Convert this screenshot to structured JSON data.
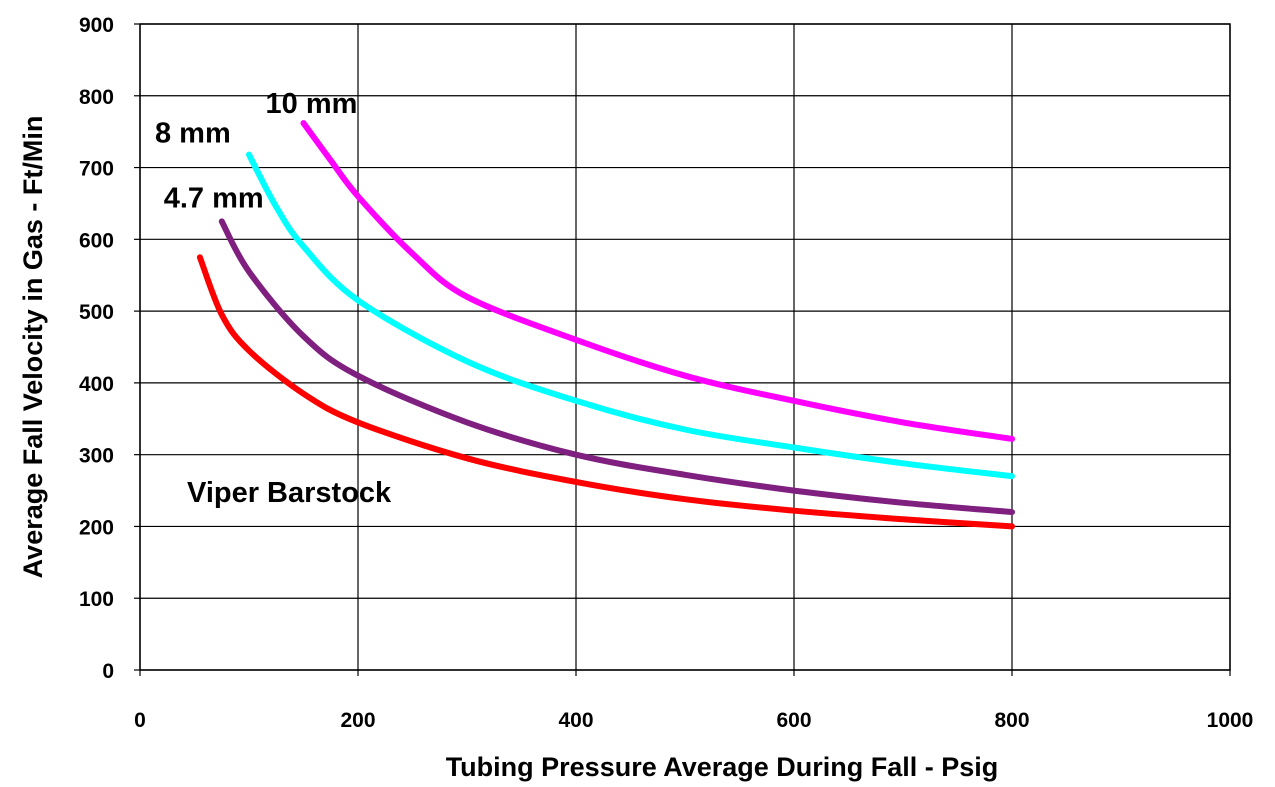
{
  "chart_data": {
    "type": "line",
    "title": "",
    "xlabel": "Tubing Pressure Average During Fall - Psig",
    "ylabel": "Average Fall Velocity in Gas - Ft/Min",
    "xlim": [
      0,
      1000
    ],
    "ylim": [
      0,
      900
    ],
    "xticks": [
      "0",
      "200",
      "400",
      "600",
      "800",
      "1000"
    ],
    "yticks": [
      "0",
      "100",
      "200",
      "300",
      "400",
      "500",
      "600",
      "700",
      "800",
      "900"
    ],
    "grid": true,
    "legend": "none",
    "annotations": [
      "Viper Barstock"
    ],
    "series": [
      {
        "name": "",
        "color": "#ff0000",
        "x": [
          55,
          75,
          100,
          150,
          200,
          300,
          400,
          500,
          600,
          700,
          800
        ],
        "y": [
          575,
          495,
          445,
          385,
          345,
          295,
          262,
          238,
          222,
          210,
          200
        ]
      },
      {
        "name": "4.7 mm",
        "color": "#7f1f7f",
        "x": [
          75,
          100,
          150,
          200,
          300,
          400,
          500,
          600,
          700,
          800
        ],
        "y": [
          625,
          555,
          465,
          410,
          345,
          300,
          272,
          250,
          233,
          220
        ]
      },
      {
        "name": "8 mm",
        "color": "#00ffff",
        "x": [
          100,
          125,
          150,
          200,
          300,
          400,
          500,
          600,
          700,
          800
        ],
        "y": [
          718,
          645,
          590,
          515,
          430,
          375,
          335,
          310,
          288,
          270
        ]
      },
      {
        "name": "10 mm",
        "color": "#ff00ff",
        "x": [
          150,
          175,
          200,
          250,
          300,
          400,
          500,
          600,
          700,
          800
        ],
        "y": [
          762,
          710,
          660,
          580,
          520,
          460,
          410,
          375,
          345,
          322
        ]
      }
    ]
  }
}
